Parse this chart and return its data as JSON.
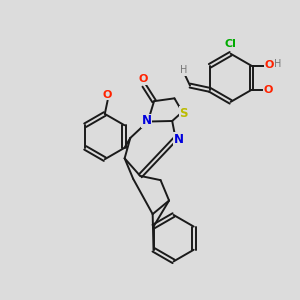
{
  "bg_color": "#dcdcdc",
  "bond_color": "#1a1a1a",
  "figsize": [
    3.0,
    3.0
  ],
  "dpi": 100,
  "xlim": [
    -1.0,
    9.5
  ],
  "ylim": [
    -0.5,
    9.5
  ]
}
